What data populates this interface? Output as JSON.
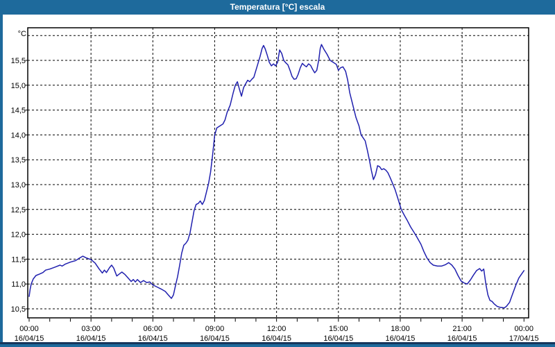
{
  "window": {
    "title": "Temperatura [°C] escala"
  },
  "colors": {
    "titlebar_bg": "#1e6a9c",
    "titlebar_text": "#ffffff",
    "border_dark": "#16365c",
    "plot_bg": "#ffffff",
    "frame": "#000000",
    "grid": "#000000",
    "tick_text": "#000000",
    "series_line": "#1f1fae"
  },
  "chart_data": {
    "type": "line",
    "title": "Temperatura [°C] escala",
    "xlabel": "",
    "ylabel": "°C",
    "grid": "dashed",
    "legend": "none",
    "ylim": [
      10.3,
      16.15
    ],
    "xlim_hours": [
      0,
      24.25
    ],
    "x_minor_tick_every_hours": 1,
    "x_ticks": [
      {
        "hour": 0,
        "time": "00:00",
        "date": "16/04/15"
      },
      {
        "hour": 3,
        "time": "03:00",
        "date": "16/04/15"
      },
      {
        "hour": 6,
        "time": "06:00",
        "date": "16/04/15"
      },
      {
        "hour": 9,
        "time": "09:00",
        "date": "16/04/15"
      },
      {
        "hour": 12,
        "time": "12:00",
        "date": "16/04/15"
      },
      {
        "hour": 15,
        "time": "15:00",
        "date": "16/04/15"
      },
      {
        "hour": 18,
        "time": "18:00",
        "date": "16/04/15"
      },
      {
        "hour": 21,
        "time": "21:00",
        "date": "16/04/15"
      },
      {
        "hour": 24,
        "time": "00:00",
        "date": "17/04/15"
      }
    ],
    "x_gridline_hours": [
      3,
      6,
      9,
      12,
      15,
      18,
      21
    ],
    "y_ticks": [
      {
        "value": 10.5,
        "label": "10,5"
      },
      {
        "value": 11.0,
        "label": "11,0"
      },
      {
        "value": 11.5,
        "label": "11,5"
      },
      {
        "value": 12.0,
        "label": "12,0"
      },
      {
        "value": 12.5,
        "label": "12,5"
      },
      {
        "value": 13.0,
        "label": "13,0"
      },
      {
        "value": 13.5,
        "label": "13,5"
      },
      {
        "value": 14.0,
        "label": "14,0"
      },
      {
        "value": 14.5,
        "label": "14,5"
      },
      {
        "value": 15.0,
        "label": "15,0"
      },
      {
        "value": 15.5,
        "label": "15,5"
      },
      {
        "value": 16.0,
        "label": ""
      }
    ],
    "series": [
      {
        "name": "Temperatura",
        "color": "#1f1fae",
        "points": [
          [
            0,
            10.75
          ],
          [
            0.05,
            10.9
          ],
          [
            0.1,
            11.0
          ],
          [
            0.2,
            11.1
          ],
          [
            0.33,
            11.17
          ],
          [
            0.5,
            11.2
          ],
          [
            0.67,
            11.23
          ],
          [
            0.8,
            11.28
          ],
          [
            1,
            11.3
          ],
          [
            1.25,
            11.34
          ],
          [
            1.5,
            11.38
          ],
          [
            1.6,
            11.36
          ],
          [
            1.75,
            11.4
          ],
          [
            2,
            11.44
          ],
          [
            2.25,
            11.47
          ],
          [
            2.4,
            11.51
          ],
          [
            2.6,
            11.56
          ],
          [
            2.75,
            11.53
          ],
          [
            3,
            11.49
          ],
          [
            3.2,
            11.42
          ],
          [
            3.4,
            11.3
          ],
          [
            3.55,
            11.22
          ],
          [
            3.65,
            11.28
          ],
          [
            3.75,
            11.23
          ],
          [
            3.9,
            11.33
          ],
          [
            4,
            11.38
          ],
          [
            4.1,
            11.32
          ],
          [
            4.25,
            11.16
          ],
          [
            4.4,
            11.21
          ],
          [
            4.5,
            11.24
          ],
          [
            4.65,
            11.19
          ],
          [
            4.8,
            11.12
          ],
          [
            4.95,
            11.05
          ],
          [
            5.05,
            11.09
          ],
          [
            5.15,
            11.04
          ],
          [
            5.25,
            11.09
          ],
          [
            5.4,
            11.03
          ],
          [
            5.55,
            11.07
          ],
          [
            5.7,
            11.03
          ],
          [
            5.85,
            11.04
          ],
          [
            6,
            10.98
          ],
          [
            6.2,
            10.94
          ],
          [
            6.4,
            10.9
          ],
          [
            6.6,
            10.85
          ],
          [
            6.75,
            10.78
          ],
          [
            6.9,
            10.71
          ],
          [
            7,
            10.78
          ],
          [
            7.1,
            10.97
          ],
          [
            7.2,
            11.15
          ],
          [
            7.3,
            11.38
          ],
          [
            7.4,
            11.62
          ],
          [
            7.5,
            11.78
          ],
          [
            7.6,
            11.82
          ],
          [
            7.7,
            11.88
          ],
          [
            7.8,
            12.02
          ],
          [
            7.9,
            12.25
          ],
          [
            8,
            12.48
          ],
          [
            8.1,
            12.6
          ],
          [
            8.2,
            12.62
          ],
          [
            8.3,
            12.67
          ],
          [
            8.4,
            12.6
          ],
          [
            8.5,
            12.68
          ],
          [
            8.6,
            12.85
          ],
          [
            8.7,
            13.02
          ],
          [
            8.8,
            13.25
          ],
          [
            8.9,
            13.6
          ],
          [
            9,
            14.0
          ],
          [
            9.1,
            14.14
          ],
          [
            9.25,
            14.18
          ],
          [
            9.4,
            14.22
          ],
          [
            9.5,
            14.3
          ],
          [
            9.6,
            14.45
          ],
          [
            9.75,
            14.6
          ],
          [
            9.9,
            14.85
          ],
          [
            10,
            15.0
          ],
          [
            10.1,
            15.07
          ],
          [
            10.2,
            14.92
          ],
          [
            10.3,
            14.78
          ],
          [
            10.4,
            14.95
          ],
          [
            10.5,
            15.03
          ],
          [
            10.6,
            15.1
          ],
          [
            10.7,
            15.07
          ],
          [
            10.8,
            15.12
          ],
          [
            10.9,
            15.16
          ],
          [
            11,
            15.3
          ],
          [
            11.1,
            15.44
          ],
          [
            11.2,
            15.58
          ],
          [
            11.3,
            15.74
          ],
          [
            11.37,
            15.8
          ],
          [
            11.45,
            15.73
          ],
          [
            11.55,
            15.6
          ],
          [
            11.65,
            15.46
          ],
          [
            11.75,
            15.39
          ],
          [
            11.85,
            15.43
          ],
          [
            11.95,
            15.39
          ],
          [
            12.05,
            15.46
          ],
          [
            12.15,
            15.71
          ],
          [
            12.25,
            15.64
          ],
          [
            12.35,
            15.5
          ],
          [
            12.45,
            15.45
          ],
          [
            12.55,
            15.41
          ],
          [
            12.65,
            15.3
          ],
          [
            12.75,
            15.18
          ],
          [
            12.85,
            15.12
          ],
          [
            12.95,
            15.13
          ],
          [
            13.05,
            15.22
          ],
          [
            13.15,
            15.35
          ],
          [
            13.25,
            15.44
          ],
          [
            13.35,
            15.4
          ],
          [
            13.45,
            15.37
          ],
          [
            13.55,
            15.43
          ],
          [
            13.65,
            15.4
          ],
          [
            13.75,
            15.32
          ],
          [
            13.85,
            15.25
          ],
          [
            13.95,
            15.3
          ],
          [
            14.05,
            15.52
          ],
          [
            14.12,
            15.74
          ],
          [
            14.18,
            15.82
          ],
          [
            14.3,
            15.72
          ],
          [
            14.45,
            15.62
          ],
          [
            14.6,
            15.5
          ],
          [
            14.75,
            15.46
          ],
          [
            14.9,
            15.42
          ],
          [
            15.0,
            15.3
          ],
          [
            15.1,
            15.35
          ],
          [
            15.22,
            15.37
          ],
          [
            15.35,
            15.28
          ],
          [
            15.45,
            15.1
          ],
          [
            15.55,
            14.85
          ],
          [
            15.7,
            14.6
          ],
          [
            15.85,
            14.35
          ],
          [
            16,
            14.18
          ],
          [
            16.1,
            14.0
          ],
          [
            16.2,
            13.94
          ],
          [
            16.3,
            13.88
          ],
          [
            16.4,
            13.7
          ],
          [
            16.5,
            13.5
          ],
          [
            16.6,
            13.28
          ],
          [
            16.7,
            13.1
          ],
          [
            16.8,
            13.2
          ],
          [
            16.9,
            13.38
          ],
          [
            17,
            13.36
          ],
          [
            17.1,
            13.3
          ],
          [
            17.2,
            13.32
          ],
          [
            17.3,
            13.29
          ],
          [
            17.4,
            13.24
          ],
          [
            17.5,
            13.15
          ],
          [
            17.6,
            13.05
          ],
          [
            17.75,
            12.9
          ],
          [
            17.9,
            12.7
          ],
          [
            18.05,
            12.5
          ],
          [
            18.2,
            12.38
          ],
          [
            18.35,
            12.27
          ],
          [
            18.5,
            12.15
          ],
          [
            18.65,
            12.05
          ],
          [
            18.8,
            11.95
          ],
          [
            19,
            11.8
          ],
          [
            19.15,
            11.65
          ],
          [
            19.3,
            11.52
          ],
          [
            19.45,
            11.43
          ],
          [
            19.6,
            11.38
          ],
          [
            19.8,
            11.36
          ],
          [
            20,
            11.36
          ],
          [
            20.2,
            11.39
          ],
          [
            20.35,
            11.43
          ],
          [
            20.5,
            11.38
          ],
          [
            20.65,
            11.3
          ],
          [
            20.8,
            11.17
          ],
          [
            20.95,
            11.06
          ],
          [
            21.1,
            11.02
          ],
          [
            21.25,
            11.0
          ],
          [
            21.4,
            11.08
          ],
          [
            21.55,
            11.18
          ],
          [
            21.7,
            11.27
          ],
          [
            21.85,
            11.31
          ],
          [
            21.95,
            11.26
          ],
          [
            22.05,
            11.3
          ],
          [
            22.15,
            11.0
          ],
          [
            22.25,
            10.78
          ],
          [
            22.35,
            10.67
          ],
          [
            22.45,
            10.65
          ],
          [
            22.55,
            10.6
          ],
          [
            22.7,
            10.55
          ],
          [
            22.85,
            10.53
          ],
          [
            23.05,
            10.52
          ],
          [
            23.15,
            10.55
          ],
          [
            23.3,
            10.63
          ],
          [
            23.45,
            10.8
          ],
          [
            23.6,
            10.97
          ],
          [
            23.75,
            11.12
          ],
          [
            23.9,
            11.21
          ],
          [
            24,
            11.27
          ]
        ]
      }
    ]
  }
}
